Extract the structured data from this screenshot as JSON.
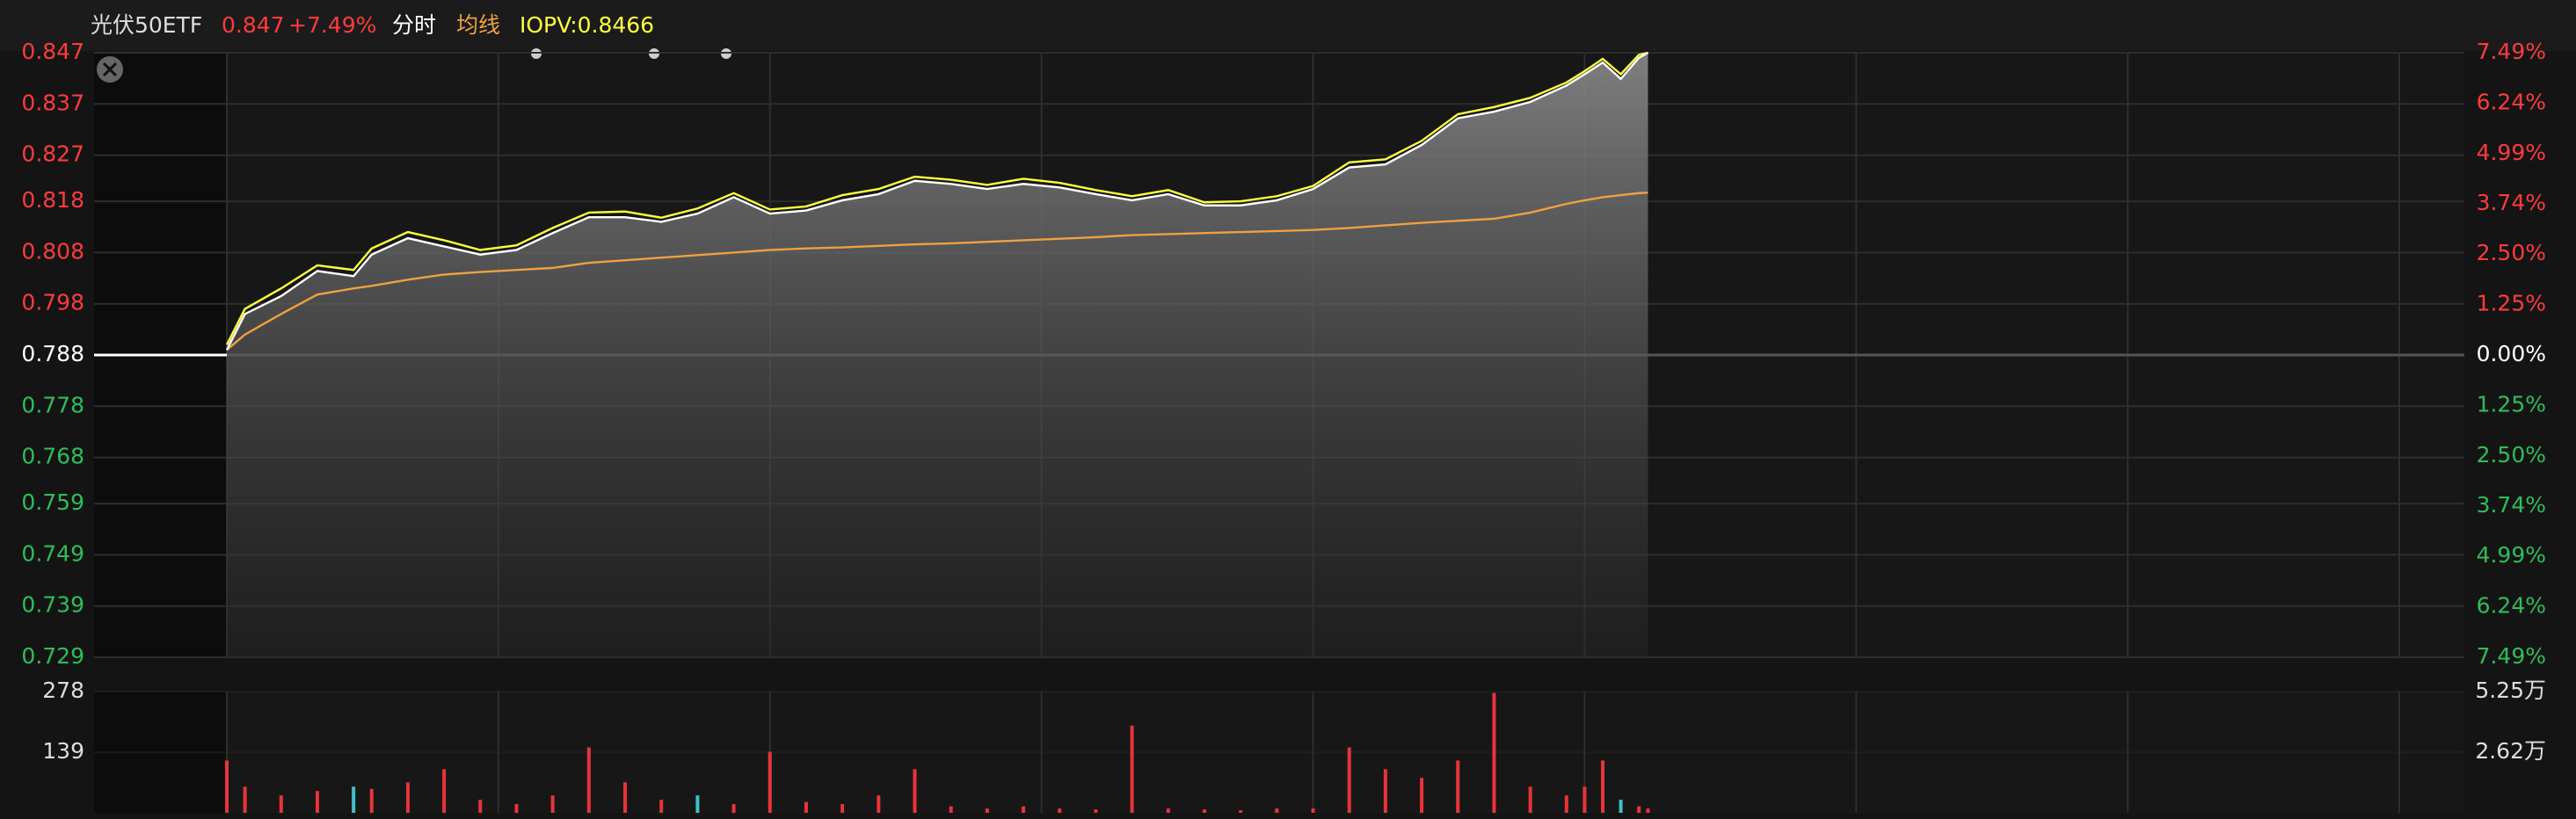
{
  "chart_data": {
    "type": "line",
    "title": "光伏50ETF",
    "last_price": 0.847,
    "change": {
      "value": 7.49,
      "label": "+7.49%"
    },
    "mode": "分时",
    "iopv": {
      "value": 0.8466,
      "label": "IOPV:0.8466"
    },
    "prev_close": 0.788,
    "xlim": [
      0,
      240
    ],
    "x": [
      0,
      2,
      6,
      10,
      14,
      16,
      20,
      24,
      28,
      32,
      36,
      40,
      44,
      48,
      52,
      56,
      60,
      64,
      68,
      72,
      76,
      80,
      84,
      88,
      92,
      96,
      100,
      104,
      108,
      112,
      116,
      120,
      124,
      128,
      132,
      136,
      140,
      144,
      148,
      150,
      152,
      154,
      156,
      157
    ],
    "series": [
      {
        "color": "#ffffff",
        "values": [
          0.789,
          0.796,
          0.7995,
          0.8044,
          0.8034,
          0.8076,
          0.8108,
          0.8092,
          0.8076,
          0.8085,
          0.8118,
          0.8149,
          0.8149,
          0.814,
          0.8156,
          0.8188,
          0.8156,
          0.8162,
          0.8182,
          0.8194,
          0.822,
          0.8214,
          0.8204,
          0.8214,
          0.8207,
          0.8194,
          0.8182,
          0.8194,
          0.8172,
          0.8172,
          0.8182,
          0.8204,
          0.8246,
          0.8252,
          0.829,
          0.8342,
          0.8355,
          0.8374,
          0.8406,
          0.8428,
          0.8451,
          0.8419,
          0.846,
          0.847
        ]
      },
      {
        "name": "均线",
        "color": "#f0a040",
        "values": [
          0.789,
          0.792,
          0.796,
          0.7998,
          0.801,
          0.8015,
          0.8027,
          0.8037,
          0.8042,
          0.8046,
          0.805,
          0.806,
          0.8065,
          0.807,
          0.8075,
          0.808,
          0.8085,
          0.8088,
          0.809,
          0.8093,
          0.8096,
          0.8098,
          0.8101,
          0.8104,
          0.8107,
          0.811,
          0.8114,
          0.8116,
          0.8118,
          0.812,
          0.8122,
          0.8124,
          0.8128,
          0.8133,
          0.8138,
          0.8142,
          0.8146,
          0.8158,
          0.8175,
          0.8182,
          0.8188,
          0.8192,
          0.8196,
          0.8197
        ]
      },
      {
        "color": "#ffff40",
        "values": [
          0.79,
          0.797,
          0.801,
          0.8055,
          0.8046,
          0.8088,
          0.812,
          0.8104,
          0.8085,
          0.8094,
          0.8128,
          0.8158,
          0.816,
          0.8148,
          0.8166,
          0.8196,
          0.8164,
          0.817,
          0.8192,
          0.8204,
          0.8228,
          0.8222,
          0.8212,
          0.8224,
          0.8216,
          0.8202,
          0.819,
          0.8202,
          0.8178,
          0.818,
          0.819,
          0.821,
          0.8256,
          0.8262,
          0.8298,
          0.835,
          0.8364,
          0.8382,
          0.8412,
          0.8434,
          0.8458,
          0.8428,
          0.8466,
          0.847
        ]
      }
    ],
    "ylim": [
      0.729,
      0.847
    ],
    "yticks": [
      0.847,
      0.837,
      0.827,
      0.818,
      0.808,
      0.798,
      0.788,
      0.778,
      0.768,
      0.759,
      0.749,
      0.739,
      0.729
    ],
    "y2lim": [
      -7.49,
      7.49
    ],
    "y2ticks": [
      {
        "value": 7.49,
        "label": "7.49%"
      },
      {
        "value": 6.24,
        "label": "6.24%"
      },
      {
        "value": 4.99,
        "label": "4.99%"
      },
      {
        "value": 3.74,
        "label": "3.74%"
      },
      {
        "value": 2.5,
        "label": "2.50%"
      },
      {
        "value": 1.25,
        "label": "1.25%"
      },
      {
        "value": 0,
        "label": "0.00%"
      },
      {
        "value": -1.25,
        "label": "1.25%"
      },
      {
        "value": -2.5,
        "label": "2.50%"
      },
      {
        "value": -3.74,
        "label": "3.74%"
      },
      {
        "value": -4.99,
        "label": "4.99%"
      },
      {
        "value": -6.24,
        "label": "6.24%"
      },
      {
        "value": -7.49,
        "label": "7.49%"
      }
    ],
    "up_color": "#ff3b3b",
    "down_color": "#2ebd5a",
    "grid": true,
    "volume": {
      "values": [
        120,
        60,
        40,
        50,
        60,
        55,
        70,
        100,
        30,
        20,
        40,
        150,
        70,
        30,
        40,
        20,
        140,
        25,
        20,
        40,
        100,
        15,
        10,
        15,
        10,
        8,
        200,
        10,
        8,
        6,
        10,
        10,
        150,
        100,
        80,
        120,
        275,
        60,
        40,
        60,
        120,
        30,
        15,
        10
      ],
      "colors": [
        "#e8343a",
        "#e8343a",
        "#e8343a",
        "#e8343a",
        "#3fc1c9",
        "#e8343a",
        "#e8343a",
        "#e8343a",
        "#e8343a",
        "#e8343a",
        "#e8343a",
        "#e8343a",
        "#e8343a",
        "#e8343a",
        "#3fc1c9",
        "#e8343a",
        "#e8343a",
        "#e8343a",
        "#e8343a",
        "#e8343a",
        "#e8343a",
        "#e8343a",
        "#e8343a",
        "#e8343a",
        "#e8343a",
        "#e8343a",
        "#e8343a",
        "#e8343a",
        "#e8343a",
        "#e8343a",
        "#e8343a",
        "#e8343a",
        "#e8343a",
        "#e8343a",
        "#e8343a",
        "#e8343a",
        "#e8343a",
        "#e8343a",
        "#e8343a",
        "#e8343a",
        "#e8343a",
        "#3fc1c9",
        "#e8343a",
        "#e8343a"
      ],
      "ylim": [
        0,
        278
      ],
      "yticks": [
        278,
        139
      ],
      "y2lim": [
        0,
        52500
      ],
      "y2ticks": [
        {
          "value": 52500,
          "label": "5.25万"
        },
        {
          "value": 26200,
          "label": "2.62万"
        }
      ]
    }
  }
}
